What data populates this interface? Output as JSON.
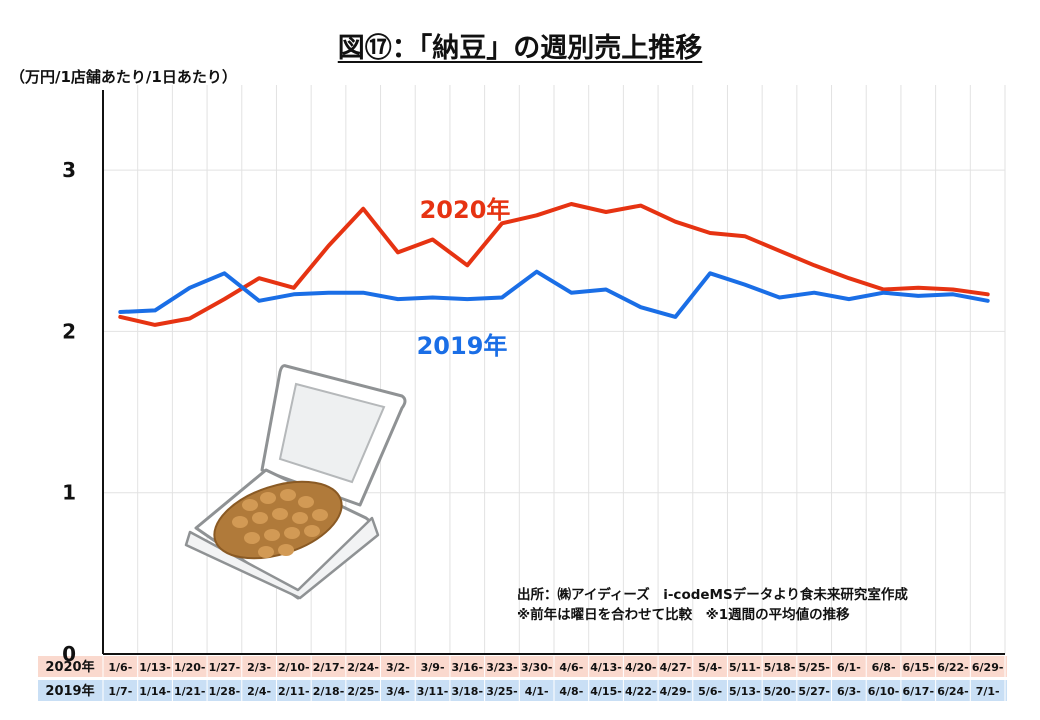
{
  "title": "図⑰：「納豆」の週別売上推移",
  "unit_label": "（万円/1店舗あたり/1日あたり）",
  "source_note": "出所：㈱アイディーズ　i-codeMSデータより食未来研究室作成",
  "remarks": "※前年は曜日を合わせて比較　※1週間の平均値の推移",
  "chart_data": {
    "type": "line",
    "ylim": [
      0,
      3.5
    ],
    "yticks": [
      0,
      1,
      2,
      3
    ],
    "grid": true,
    "colors": {
      "2020年": "#e63312",
      "2019年": "#1a6ee6"
    },
    "row_colors": {
      "2020年": "#fad9ce",
      "2019年": "#c9dff5"
    },
    "categories_2020": [
      "1/6-",
      "1/13-",
      "1/20-",
      "1/27-",
      "2/3-",
      "2/10-",
      "2/17-",
      "2/24-",
      "3/2-",
      "3/9-",
      "3/16-",
      "3/23-",
      "3/30-",
      "4/6-",
      "4/13-",
      "4/20-",
      "4/27-",
      "5/4-",
      "5/11-",
      "5/18-",
      "5/25-",
      "6/1-",
      "6/8-",
      "6/15-",
      "6/22-",
      "6/29-"
    ],
    "categories_2019": [
      "1/7-",
      "1/14-",
      "1/21-",
      "1/28-",
      "2/4-",
      "2/11-",
      "2/18-",
      "2/25-",
      "3/4-",
      "3/11-",
      "3/18-",
      "3/25-",
      "4/1-",
      "4/8-",
      "4/15-",
      "4/22-",
      "4/29-",
      "5/6-",
      "5/13-",
      "5/20-",
      "5/27-",
      "6/3-",
      "6/10-",
      "6/17-",
      "6/24-",
      "7/1-"
    ],
    "series": [
      {
        "name": "2020年",
        "values": [
          2.09,
          2.04,
          2.08,
          2.2,
          2.33,
          2.27,
          2.53,
          2.76,
          2.49,
          2.57,
          2.41,
          2.67,
          2.72,
          2.79,
          2.74,
          2.78,
          2.68,
          2.61,
          2.59,
          2.5,
          2.41,
          2.33,
          2.26,
          2.27,
          2.26,
          2.23
        ]
      },
      {
        "name": "2019年",
        "values": [
          2.12,
          2.13,
          2.27,
          2.36,
          2.19,
          2.23,
          2.24,
          2.24,
          2.2,
          2.21,
          2.2,
          2.21,
          2.37,
          2.24,
          2.26,
          2.15,
          2.09,
          2.36,
          2.29,
          2.21,
          2.24,
          2.2,
          2.24,
          2.22,
          2.23,
          2.19
        ]
      }
    ]
  }
}
